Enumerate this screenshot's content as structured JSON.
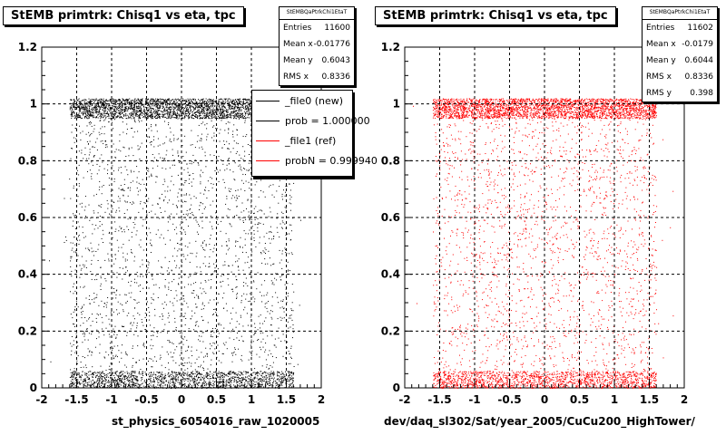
{
  "colors": {
    "left_markers": "#000000",
    "right_markers": "#ff0000",
    "grid": "#000000"
  },
  "panels": [
    {
      "title": "StEMB primtrk: Chisq1 vs eta, tpc",
      "xcaption": "st_physics_6054016_raw_1020005",
      "stats": {
        "name": "StEMBQaPtrkChi1EtaT",
        "rows": [
          {
            "label": "Entries",
            "value": "11600"
          },
          {
            "label": "Mean x",
            "value": "-0.01776"
          },
          {
            "label": "Mean y",
            "value": "0.6043"
          },
          {
            "label": "RMS x",
            "value": "0.8336"
          }
        ]
      },
      "legend": [
        {
          "label": "_file0 (new)",
          "color": "#000000"
        },
        {
          "label": "prob = 1.000000",
          "color": "#000000"
        },
        {
          "label": "_file1 (ref)",
          "color": "#ff0000"
        },
        {
          "label": "probN = 0.999940",
          "color": "#ff0000"
        }
      ]
    },
    {
      "title": "StEMB primtrk: Chisq1 vs eta, tpc",
      "xcaption": "dev/daq_sl302/Sat/year_2005/CuCu200_HighTower/",
      "stats": {
        "name": "StEMBQaPtrkChi1EtaT",
        "rows": [
          {
            "label": "Entries",
            "value": "11602"
          },
          {
            "label": "Mean x",
            "value": "-0.0179"
          },
          {
            "label": "Mean y",
            "value": "0.6044"
          },
          {
            "label": "RMS x",
            "value": "0.8336"
          },
          {
            "label": "RMS y",
            "value": "0.398"
          }
        ]
      }
    }
  ],
  "chart_data": [
    {
      "type": "scatter",
      "title": "StEMB primtrk: Chisq1 vs eta, tpc",
      "xlabel": "st_physics_6054016_raw_1020005",
      "ylabel": "",
      "xlim": [
        -2,
        2
      ],
      "ylim": [
        0,
        1.2
      ],
      "xticks": [
        "-2",
        "-1.5",
        "-1",
        "-0.5",
        "0",
        "0.5",
        "1",
        "1.5",
        "2"
      ],
      "yticks": [
        "0",
        "0.2",
        "0.4",
        "0.6",
        "0.8",
        "1",
        "1.2"
      ],
      "grid": true,
      "marker_color": "#000000",
      "entries": 11600,
      "distribution": {
        "x_range": [
          -1.6,
          1.6
        ],
        "bands": [
          {
            "y_range": [
              0.95,
              1.02
            ],
            "density": "high"
          },
          {
            "y_range": [
              0.0,
              0.06
            ],
            "density": "high"
          },
          {
            "y_range": [
              0.06,
              0.95
            ],
            "density": "low"
          }
        ]
      },
      "legend_position": "top-right"
    },
    {
      "type": "scatter",
      "title": "StEMB primtrk: Chisq1 vs eta, tpc",
      "xlabel": "dev/daq_sl302/Sat/year_2005/CuCu200_HighTower/",
      "ylabel": "",
      "xlim": [
        -2,
        2
      ],
      "ylim": [
        0,
        1.2
      ],
      "xticks": [
        "-2",
        "-1.5",
        "-1",
        "-0.5",
        "0",
        "0.5",
        "1",
        "1.5",
        "2"
      ],
      "yticks": [
        "0",
        "0.2",
        "0.4",
        "0.6",
        "0.8",
        "1",
        "1.2"
      ],
      "grid": true,
      "marker_color": "#ff0000",
      "entries": 11602,
      "distribution": {
        "x_range": [
          -1.6,
          1.6
        ],
        "bands": [
          {
            "y_range": [
              0.95,
              1.02
            ],
            "density": "high"
          },
          {
            "y_range": [
              0.0,
              0.06
            ],
            "density": "high"
          },
          {
            "y_range": [
              0.06,
              0.95
            ],
            "density": "low"
          }
        ]
      }
    }
  ]
}
